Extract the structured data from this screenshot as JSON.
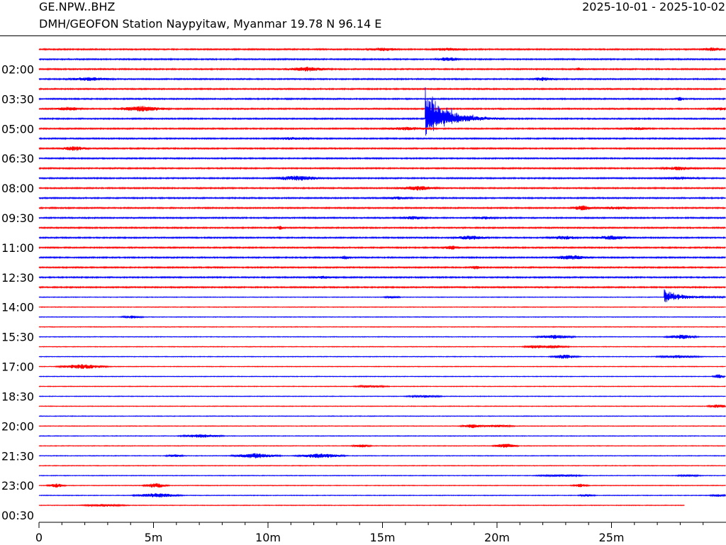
{
  "header": {
    "station_code": "GE.NPW..BHZ",
    "date_range": "2025-10-01 - 2025-10-02",
    "station_description": "DMH/GEOFON Station Naypyitaw, Myanmar  19.78 N 96.14 E"
  },
  "colors": {
    "trace_a": "#ff0000",
    "trace_b": "#0000ff",
    "axis": "#000000"
  },
  "chart_data": {
    "type": "line",
    "x_unit": "minutes",
    "xlim": [
      0,
      30
    ],
    "x_ticks": [
      {
        "value": 0,
        "label": "0"
      },
      {
        "value": 5,
        "label": "5m"
      },
      {
        "value": 10,
        "label": "10m"
      },
      {
        "value": 15,
        "label": "15m"
      },
      {
        "value": 20,
        "label": "20m"
      },
      {
        "value": 25,
        "label": "25m"
      }
    ],
    "minor_tick_step": 1,
    "trace_count": 47,
    "end_minute_last_trace": 28.2,
    "y_labels": [
      {
        "trace": 2,
        "label": "02:00"
      },
      {
        "trace": 5,
        "label": "03:30"
      },
      {
        "trace": 8,
        "label": "05:00"
      },
      {
        "trace": 11,
        "label": "06:30"
      },
      {
        "trace": 14,
        "label": "08:00"
      },
      {
        "trace": 17,
        "label": "09:30"
      },
      {
        "trace": 20,
        "label": "11:00"
      },
      {
        "trace": 23,
        "label": "12:30"
      },
      {
        "trace": 26,
        "label": "14:00"
      },
      {
        "trace": 29,
        "label": "15:30"
      },
      {
        "trace": 32,
        "label": "17:00"
      },
      {
        "trace": 35,
        "label": "18:30"
      },
      {
        "trace": 38,
        "label": "20:00"
      },
      {
        "trace": 41,
        "label": "21:30"
      },
      {
        "trace": 44,
        "label": "23:00"
      },
      {
        "trace": 47,
        "label": "00:30"
      }
    ],
    "events": [
      {
        "trace": 7,
        "start_minute": 16.85,
        "duration_minutes": 3.5,
        "peak_up": 4.0,
        "peak_down": 2.0,
        "label": ""
      },
      {
        "trace": 25,
        "start_minute": 27.3,
        "duration_minutes": 2.7,
        "peak_up": 0.9,
        "peak_down": 0.5,
        "label": ""
      }
    ]
  }
}
